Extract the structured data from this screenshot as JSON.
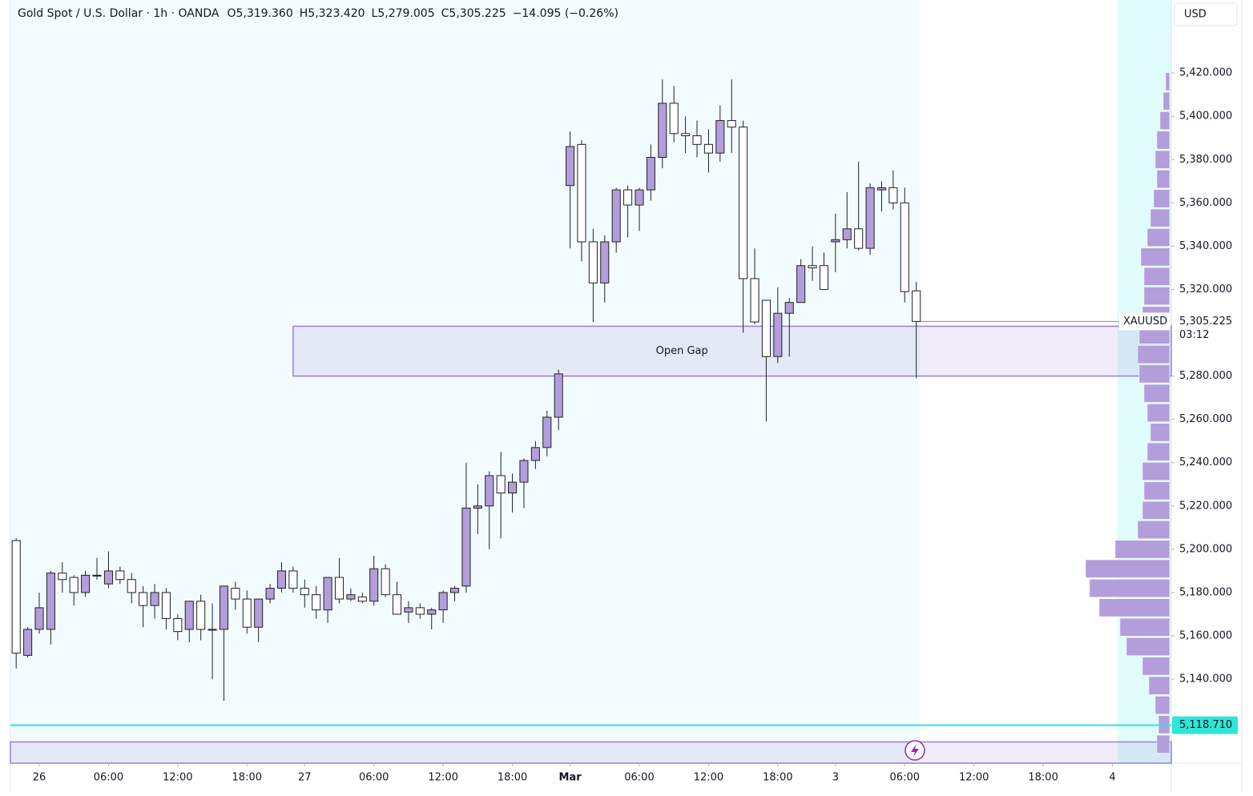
{
  "header": {
    "title": "Gold Spot / U.S. Dollar · 1h · OANDA",
    "ohlc": [
      {
        "key": "O",
        "text": "5,319.360"
      },
      {
        "key": "H",
        "text": "5,323.420"
      },
      {
        "key": "L",
        "text": "5,279.005"
      },
      {
        "key": "C",
        "text": "5,305.225"
      }
    ],
    "change": "−14.095 (−0.26%)"
  },
  "chart_data": {
    "type": "candlestick",
    "currency": "USD",
    "up_color": "#b39ddb",
    "down_color": "#ffffff",
    "border_color": "#222222",
    "xlim": [
      -0.5,
      100.1
    ],
    "ylim": [
      5101.2,
      5453.7
    ],
    "xticks": [
      {
        "value": 2,
        "label": "26"
      },
      {
        "value": 8,
        "label": "06:00"
      },
      {
        "value": 14,
        "label": "12:00"
      },
      {
        "value": 20,
        "label": "18:00"
      },
      {
        "value": 25,
        "label": "27"
      },
      {
        "value": 31,
        "label": "06:00"
      },
      {
        "value": 37,
        "label": "12:00"
      },
      {
        "value": 43,
        "label": "18:00"
      },
      {
        "value": 48,
        "label": "Mar"
      },
      {
        "value": 54,
        "label": "06:00"
      },
      {
        "value": 60,
        "label": "12:00"
      },
      {
        "value": 66,
        "label": "18:00"
      },
      {
        "value": 71,
        "label": "3"
      },
      {
        "value": 77,
        "label": "06:00"
      },
      {
        "value": 83,
        "label": "12:00"
      },
      {
        "value": 89,
        "label": "18:00"
      },
      {
        "value": 95,
        "label": "4"
      }
    ],
    "yticks": [
      {
        "value": 5140,
        "label": "5,140.000"
      },
      {
        "value": 5160,
        "label": "5,160.000"
      },
      {
        "value": 5180,
        "label": "5,180.000"
      },
      {
        "value": 5200,
        "label": "5,200.000"
      },
      {
        "value": 5220,
        "label": "5,220.000"
      },
      {
        "value": 5240,
        "label": "5,240.000"
      },
      {
        "value": 5260,
        "label": "5,260.000"
      },
      {
        "value": 5280,
        "label": "5,280.000"
      },
      {
        "value": 5320,
        "label": "5,320.000"
      },
      {
        "value": 5340,
        "label": "5,340.000"
      },
      {
        "value": 5360,
        "label": "5,360.000"
      },
      {
        "value": 5380,
        "label": "5,380.000"
      },
      {
        "value": 5400,
        "label": "5,400.000"
      },
      {
        "value": 5420,
        "label": "5,420.000"
      }
    ],
    "open": [
      5204,
      5151,
      5163,
      5163,
      5189,
      5187,
      5180,
      5188,
      5184,
      5190,
      5186,
      5180,
      5174,
      5180,
      5168,
      5163,
      5176,
      5163,
      5163,
      5182,
      5177,
      5164,
      5177,
      5182,
      5190,
      5182,
      5179,
      5172,
      5187,
      5177,
      5178,
      5176,
      5191,
      5179,
      5171,
      5173,
      5170,
      5172,
      5180,
      5183,
      5219,
      5220,
      5234,
      5226,
      5231,
      5241,
      5247,
      5261,
      5368,
      5387,
      5342,
      5323,
      5342,
      5366,
      5359,
      5366,
      5381,
      5406,
      5392,
      5391,
      5387,
      5383,
      5398,
      5395,
      5325,
      5315,
      5289,
      5309,
      5314,
      5331,
      5331,
      5342,
      5343,
      5348,
      5339,
      5366,
      5367,
      5360,
      5319.36
    ],
    "high": [
      5205,
      5164,
      5180,
      5190,
      5194,
      5188,
      5190,
      5196,
      5199,
      5192,
      5189,
      5183,
      5184,
      5182,
      5170,
      5176,
      5179,
      5175,
      5182,
      5185,
      5181,
      5177,
      5184,
      5194,
      5192,
      5186,
      5183,
      5187,
      5196,
      5182,
      5180,
      5197,
      5193,
      5185,
      5176,
      5175,
      5173,
      5181,
      5183,
      5240,
      5230,
      5236,
      5245,
      5235,
      5242,
      5250,
      5264,
      5283,
      5393,
      5389,
      5348,
      5345,
      5367,
      5368,
      5367,
      5387,
      5417,
      5414,
      5400,
      5398,
      5394,
      5405,
      5417,
      5398,
      5339,
      5315,
      5321,
      5316,
      5334,
      5340,
      5337,
      5355,
      5365,
      5379,
      5369,
      5370,
      5375,
      5367,
      5323.42
    ],
    "low": [
      5145,
      5150,
      5161,
      5156,
      5180,
      5174,
      5178,
      5186,
      5182,
      5184,
      5175,
      5164,
      5168,
      5163,
      5158,
      5157,
      5158,
      5140,
      5130,
      5172,
      5161,
      5157,
      5175,
      5180,
      5180,
      5173,
      5168,
      5166,
      5175,
      5176,
      5175,
      5174,
      5178,
      5170,
      5166,
      5168,
      5163,
      5166,
      5176,
      5180,
      5207,
      5200,
      5205,
      5217,
      5219,
      5237,
      5243,
      5255,
      5339,
      5333,
      5305,
      5314,
      5337,
      5344,
      5347,
      5361,
      5376,
      5388,
      5383,
      5381,
      5374,
      5379,
      5383,
      5300,
      5304,
      5259,
      5286,
      5289,
      5314,
      5324,
      5320,
      5328,
      5339,
      5338,
      5336,
      5356,
      5357,
      5314,
      5279.005
    ],
    "close": [
      5152,
      5163,
      5173,
      5189,
      5186,
      5180,
      5188,
      5188,
      5190,
      5186,
      5180,
      5174,
      5180,
      5168,
      5162,
      5176,
      5163,
      5163,
      5183,
      5177,
      5164,
      5177,
      5182,
      5190,
      5182,
      5179,
      5172,
      5187,
      5177,
      5179,
      5176,
      5191,
      5179,
      5170,
      5173,
      5170,
      5172,
      5180,
      5182,
      5219,
      5220,
      5234,
      5226,
      5231,
      5241,
      5247,
      5261,
      5281,
      5386,
      5342,
      5323,
      5342,
      5366,
      5359,
      5366,
      5381,
      5406,
      5392,
      5391,
      5387,
      5383,
      5398,
      5395,
      5325,
      5305,
      5289,
      5309,
      5314,
      5331,
      5330,
      5320,
      5343,
      5348,
      5339,
      5367,
      5367,
      5360,
      5319,
      5305.225
    ],
    "zones": [
      {
        "top": 5303,
        "bottom": 5280,
        "label": "Open Gap",
        "start": 24,
        "color": "#9c7fd6"
      },
      {
        "top": 5111,
        "bottom": 5101.2,
        "start": -0.5,
        "color": "#9c7fd6"
      }
    ],
    "last": {
      "symbol": "XAUUSD",
      "value": 5305.225,
      "label": "5,305.225",
      "countdown": "03:12"
    },
    "level": {
      "value": 5118.71,
      "label": "5,118.710",
      "color": "#2ee6d6"
    },
    "volume_profile": {
      "color": "#b39ddb",
      "prices": [
        5416,
        5407,
        5398,
        5389,
        5380,
        5371,
        5362,
        5353,
        5344,
        5335,
        5326,
        5317,
        5308,
        5299,
        5290,
        5281,
        5272,
        5263,
        5254,
        5245,
        5236,
        5227,
        5218,
        5209,
        5200,
        5191,
        5182,
        5173,
        5164,
        5155,
        5146,
        5137,
        5128,
        5119,
        5110
      ],
      "values": [
        5,
        8,
        12,
        16,
        18,
        16,
        20,
        24,
        28,
        36,
        32,
        32,
        34,
        38,
        40,
        38,
        32,
        28,
        24,
        28,
        34,
        32,
        34,
        40,
        68,
        105,
        100,
        88,
        62,
        54,
        34,
        26,
        18,
        14,
        16
      ]
    }
  }
}
